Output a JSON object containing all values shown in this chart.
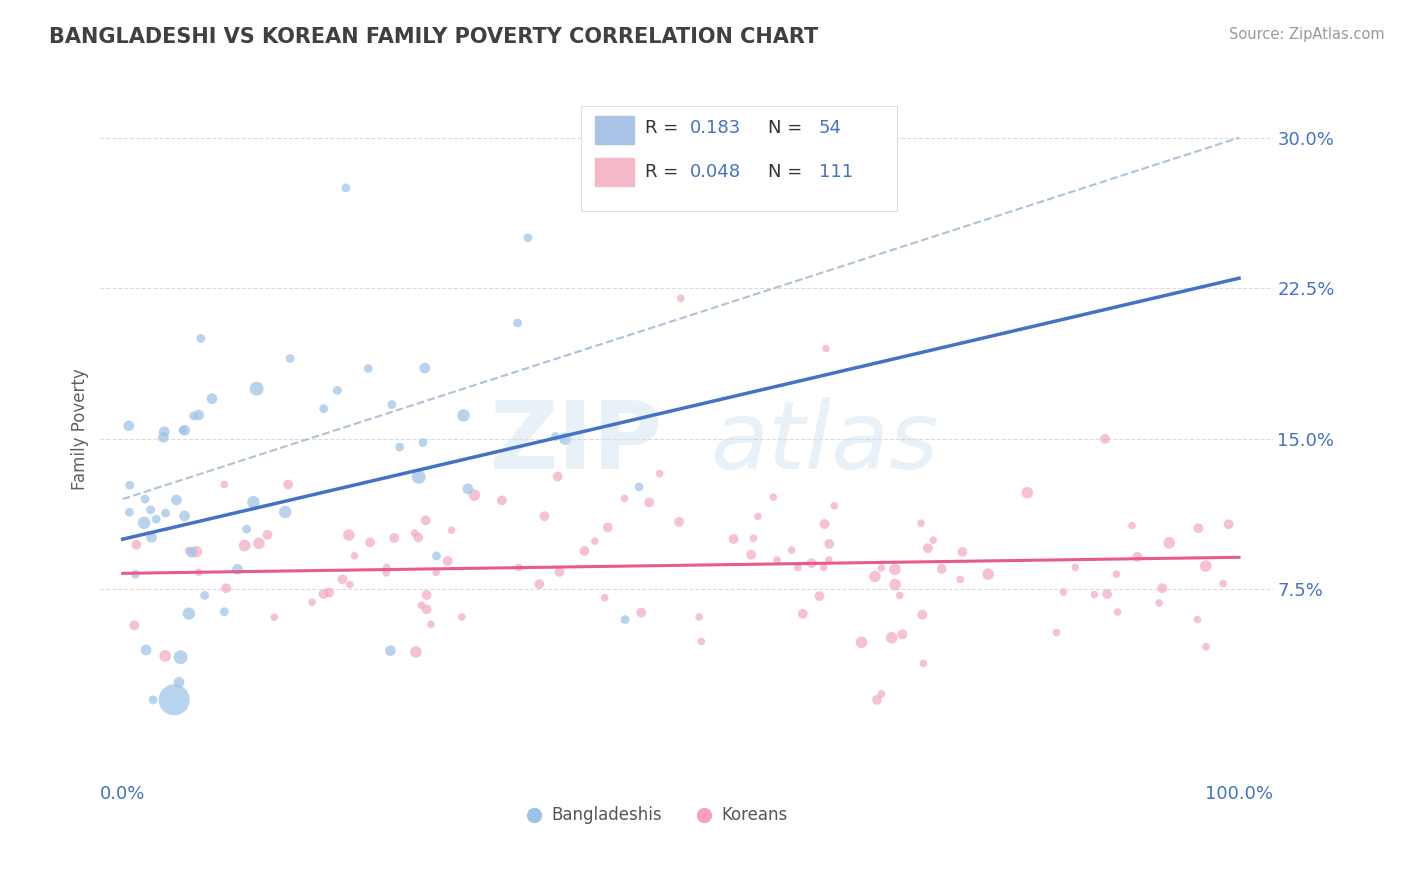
{
  "title": "BANGLADESHI VS KOREAN FAMILY POVERTY CORRELATION CHART",
  "source": "Source: ZipAtlas.com",
  "ylabel": "Family Poverty",
  "watermark_zip": "ZIP",
  "watermark_atlas": "atlas",
  "blue_line_color": "#4472c4",
  "pink_line_color": "#e85a8a",
  "dot_blue": "#9dc3e6",
  "dot_pink": "#f4a0be",
  "dashed_line_color": "#a0b8d0",
  "grid_color": "#cccccc",
  "tick_color": "#4472c4",
  "title_color": "#404040",
  "ylabel_color": "#606060",
  "source_color": "#999999",
  "legend_box_color": "#f0f0f0",
  "legend_border_color": "#dddddd",
  "legend_r_color": "#333333",
  "legend_n_color": "#4472c4",
  "blue_r": "0.183",
  "blue_n": "54",
  "pink_r": "0.048",
  "pink_n": "111",
  "blue_legend_fill": "#aac4e8",
  "pink_legend_fill": "#f5b8c8",
  "yticks": [
    7.5,
    15.0,
    22.5,
    30.0
  ],
  "ylim": [
    -2,
    33
  ],
  "xlim": [
    -2,
    103
  ]
}
